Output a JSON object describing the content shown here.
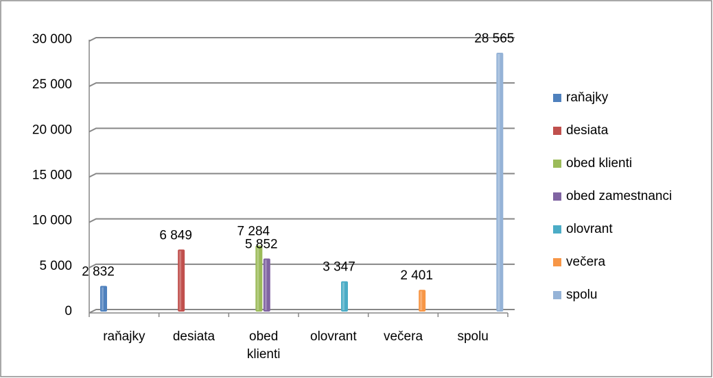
{
  "chart_data": {
    "type": "bar",
    "categories": [
      "raňajky",
      "desiata",
      "obed klienti",
      "olovrant",
      "večera",
      "spolu"
    ],
    "series": [
      {
        "name": "raňajky",
        "color": "#4f81bd",
        "values": [
          2832,
          null,
          null,
          null,
          null,
          null
        ],
        "value_labels": [
          "2 832",
          null,
          null,
          null,
          null,
          null
        ]
      },
      {
        "name": "desiata",
        "color": "#c0504d",
        "values": [
          null,
          6849,
          null,
          null,
          null,
          null
        ],
        "value_labels": [
          null,
          "6 849",
          null,
          null,
          null,
          null
        ]
      },
      {
        "name": "obed klienti",
        "color": "#9bbb59",
        "values": [
          null,
          null,
          7284,
          null,
          null,
          null
        ],
        "value_labels": [
          null,
          null,
          "7 284",
          null,
          null,
          null
        ]
      },
      {
        "name": "obed zamestnanci",
        "color": "#8064a2",
        "values": [
          null,
          null,
          5852,
          null,
          null,
          null
        ],
        "value_labels": [
          null,
          null,
          "5 852",
          null,
          null,
          null
        ]
      },
      {
        "name": "olovrant",
        "color": "#4bacc6",
        "values": [
          null,
          null,
          null,
          3347,
          null,
          null
        ],
        "value_labels": [
          null,
          null,
          null,
          "3 347",
          null,
          null
        ]
      },
      {
        "name": "večera",
        "color": "#f79646",
        "values": [
          null,
          null,
          null,
          null,
          2401,
          null
        ],
        "value_labels": [
          null,
          null,
          null,
          null,
          "2 401",
          null
        ]
      },
      {
        "name": "spolu",
        "color": "#95b3d7",
        "values": [
          null,
          null,
          null,
          null,
          null,
          28565
        ],
        "value_labels": [
          null,
          null,
          null,
          null,
          null,
          "28 565"
        ]
      }
    ],
    "ylim": [
      0,
      30000
    ],
    "yticks": [
      0,
      {
        "value": 5000,
        "label": "5 000"
      },
      {
        "value": 10000,
        "label": "10 000"
      },
      {
        "value": 15000,
        "label": "15 000"
      },
      {
        "value": 20000,
        "label": "20 000"
      },
      {
        "value": 25000,
        "label": "25 000"
      },
      {
        "value": 30000,
        "label": "30 000"
      }
    ],
    "grid": true,
    "legend": "right"
  }
}
